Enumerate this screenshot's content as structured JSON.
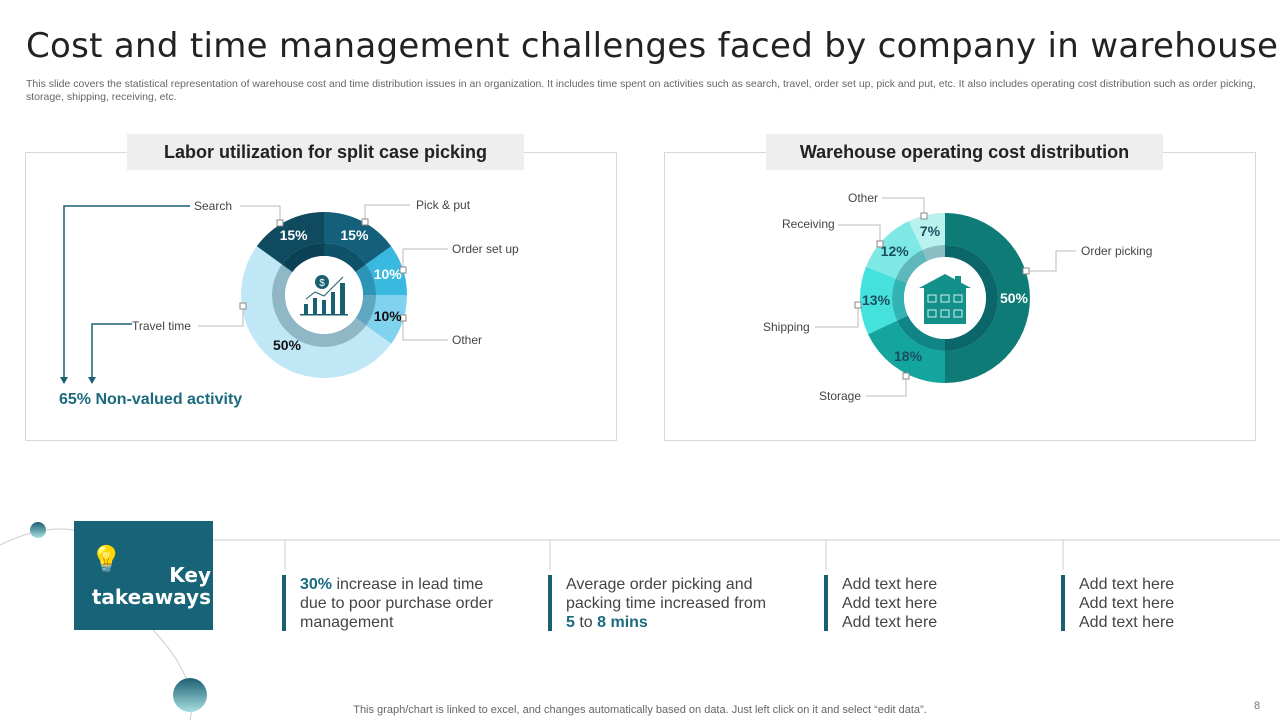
{
  "title": "Cost and time management challenges faced by company in warehouse",
  "description": "This slide covers the statistical representation of warehouse cost and time distribution issues in an organization. It includes time spent on activities such as search, travel, order set up, pick and put, etc. It also includes operating cost distribution such as order picking, storage, shipping, receiving, etc.",
  "chart_data": [
    {
      "type": "pie",
      "variant": "donut",
      "title": "Labor utilization for split case picking",
      "categories": [
        "Pick & put",
        "Order set up",
        "Other",
        "Travel time",
        "Search"
      ],
      "values": [
        15,
        10,
        10,
        50,
        15
      ],
      "labels": [
        "15%",
        "10%",
        "10%",
        "50%",
        "15%"
      ],
      "colors": [
        "#145f79",
        "#3ab9e0",
        "#80d2ef",
        "#c0e7f5",
        "#0f4a5e"
      ],
      "annotation": "65% Non-valued activity",
      "center_icon": "dollar-growth-chart-icon"
    },
    {
      "type": "pie",
      "variant": "donut",
      "title": "Warehouse operating cost distribution",
      "categories": [
        "Order picking",
        "Storage",
        "Shipping",
        "Receiving",
        "Other"
      ],
      "values": [
        50,
        18,
        13,
        12,
        7
      ],
      "labels": [
        "50%",
        "18%",
        "13%",
        "12%",
        "7%"
      ],
      "colors": [
        "#0e7b77",
        "#15a59f",
        "#45e2dd",
        "#7ee8e5",
        "#b9f1ef"
      ],
      "center_icon": "warehouse-building-icon"
    }
  ],
  "takeaways": {
    "heading": "Key takeaways",
    "items": [
      {
        "strong": "30%",
        "text": " increase in lead time due to poor purchase order management"
      },
      {
        "pre": "Average order picking and packing time increased from ",
        "a": "5",
        "mid": " to ",
        "b": "8 mins"
      },
      {
        "lines": [
          "Add text here",
          "Add text here",
          "Add text here"
        ]
      },
      {
        "lines": [
          "Add text here",
          "Add text here",
          "Add text here"
        ]
      }
    ]
  },
  "footer": "This graph/chart is linked to excel, and changes automatically based on data. Just left click on it and select “edit data”.",
  "page_number": "8"
}
